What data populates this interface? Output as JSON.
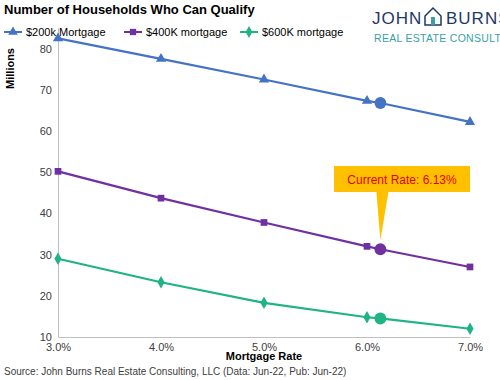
{
  "chart_data": {
    "type": "line",
    "title": "Number of Households Who Can Qualify",
    "y_label": "Millions",
    "x_label": "Mortgage Rate",
    "x": [
      3.0,
      4.0,
      5.0,
      6.0,
      6.13,
      7.0
    ],
    "series": [
      {
        "name": "$200k Mortgage",
        "color": "#4472c4",
        "marker": "triangle",
        "values": [
          82.5,
          77.5,
          72.5,
          67.3,
          66.8,
          62.2
        ]
      },
      {
        "name": "$400K mortgage",
        "color": "#7030a0",
        "marker": "square",
        "values": [
          50.2,
          43.7,
          37.8,
          32.0,
          31.3,
          27.0
        ]
      },
      {
        "name": "$600K mortgage",
        "color": "#1fb386",
        "marker": "diamond",
        "values": [
          29.0,
          23.3,
          18.3,
          14.8,
          14.5,
          12.0
        ]
      }
    ],
    "xlim": [
      3.0,
      7.0
    ],
    "xticks": [
      {
        "value": 3.0,
        "label": "3.0%"
      },
      {
        "value": 4.0,
        "label": "4.0%"
      },
      {
        "value": 5.0,
        "label": "5.0%"
      },
      {
        "value": 6.0,
        "label": "6.0%"
      },
      {
        "value": 7.0,
        "label": "7.0%"
      }
    ],
    "ylim": [
      10,
      85
    ],
    "yticks": [
      10,
      20,
      30,
      40,
      50,
      60,
      70,
      80
    ],
    "grid": false,
    "legend": "top",
    "annotations": [
      {
        "text": "Current Rate: 6.13%",
        "x": 6.13
      }
    ],
    "logo": {
      "name": "JOHN BURNS",
      "tagline": "REAL ESTATE CONSULTING"
    },
    "source": "Source: John Burns Real Estate Consulting, LLC (Data: Jun-22, Pub: Jun-22)"
  }
}
